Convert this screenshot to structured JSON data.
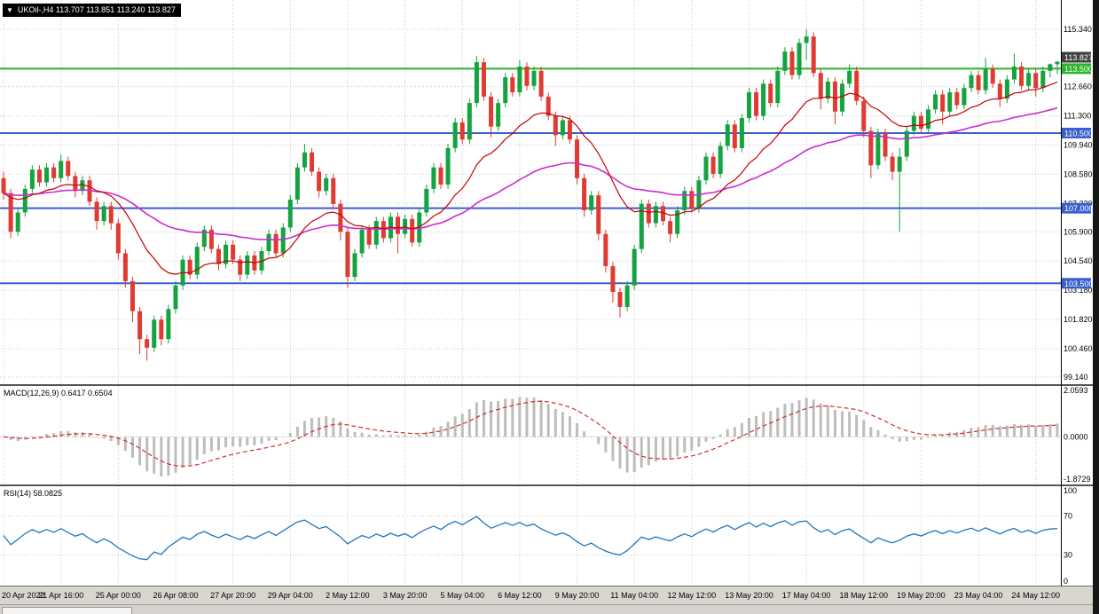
{
  "window": {
    "symbol_line": "UKOil-,H4 113.707 113.851 113.240 113.827"
  },
  "icons": {
    "collapse_arrow": "▼"
  },
  "colors": {
    "bull": "#13a33f",
    "bear": "#df3b32",
    "ma_fast": "#c40000",
    "ma_slow": "#cc2dcc",
    "grid": "#c9c9c9",
    "macd_hist": "#bdbdbd",
    "macd_signal": "#d03030",
    "rsi_line": "#2176bd",
    "separator": "#555555"
  },
  "chart_data": {
    "type": "candlestick",
    "symbol": "UKOil-",
    "timeframe": "H4",
    "ohlc_display": {
      "open": "113.707",
      "high": "113.851",
      "low": "113.240",
      "close": "113.827"
    },
    "main": {
      "price_min": 98.8,
      "price_max": 116.7,
      "ma_fast_period": 16,
      "ma_slow_period": 50,
      "axis_labels": [
        {
          "v": 115.34,
          "t": "115.340"
        },
        {
          "v": 112.66,
          "t": "112.660"
        },
        {
          "v": 111.3,
          "t": "111.300"
        },
        {
          "v": 109.94,
          "t": "109.940"
        },
        {
          "v": 108.58,
          "t": "108.580"
        },
        {
          "v": 107.22,
          "t": "107.220"
        },
        {
          "v": 105.9,
          "t": "105.900"
        },
        {
          "v": 104.54,
          "t": "104.540"
        },
        {
          "v": 103.18,
          "t": "103.180"
        },
        {
          "v": 101.82,
          "t": "101.820"
        },
        {
          "v": 100.46,
          "t": "100.460"
        },
        {
          "v": 99.14,
          "t": "99.140"
        }
      ],
      "hlines": [
        {
          "value": 113.5,
          "label": "113.500",
          "color": "#2cb52c"
        },
        {
          "value": 110.5,
          "label": "110.500",
          "color": "#3a5fcd"
        },
        {
          "value": 107.0,
          "label": "107.000",
          "color": "#3a5fcd"
        },
        {
          "value": 103.5,
          "label": "103.500",
          "color": "#3a5fcd"
        }
      ],
      "price_badge": {
        "value": 113.827,
        "label": "113.827",
        "bg": "#3f3f3f"
      },
      "candles": [
        [
          108.4,
          108.7,
          107.4,
          107.7
        ],
        [
          107.7,
          107.9,
          105.6,
          105.9
        ],
        [
          105.9,
          107.0,
          105.7,
          106.8
        ],
        [
          106.8,
          108.1,
          106.6,
          107.9
        ],
        [
          107.9,
          109.0,
          107.7,
          108.8
        ],
        [
          108.8,
          109.0,
          108.0,
          108.2
        ],
        [
          108.2,
          109.1,
          108.0,
          108.9
        ],
        [
          108.9,
          109.1,
          108.2,
          108.4
        ],
        [
          108.4,
          109.5,
          108.2,
          109.2
        ],
        [
          109.2,
          109.4,
          108.3,
          108.5
        ],
        [
          108.5,
          108.7,
          107.5,
          107.8
        ],
        [
          107.8,
          108.5,
          107.6,
          108.3
        ],
        [
          108.3,
          108.5,
          107.1,
          107.3
        ],
        [
          107.3,
          107.5,
          106.0,
          106.4
        ],
        [
          106.4,
          107.3,
          106.2,
          107.1
        ],
        [
          107.1,
          107.3,
          106.0,
          106.3
        ],
        [
          106.3,
          106.5,
          104.6,
          104.9
        ],
        [
          104.9,
          105.1,
          103.3,
          103.6
        ],
        [
          103.6,
          103.8,
          101.7,
          102.2
        ],
        [
          102.2,
          102.4,
          100.2,
          100.9
        ],
        [
          100.9,
          101.1,
          99.9,
          100.5
        ],
        [
          100.5,
          102.0,
          100.3,
          101.8
        ],
        [
          101.8,
          102.0,
          100.6,
          100.9
        ],
        [
          100.9,
          102.5,
          100.7,
          102.3
        ],
        [
          102.3,
          103.6,
          102.1,
          103.4
        ],
        [
          103.4,
          104.8,
          103.2,
          104.6
        ],
        [
          104.6,
          104.8,
          103.7,
          103.9
        ],
        [
          103.9,
          105.4,
          103.7,
          105.2
        ],
        [
          105.2,
          106.2,
          105.0,
          106.0
        ],
        [
          106.0,
          106.2,
          104.9,
          105.1
        ],
        [
          105.1,
          105.3,
          104.1,
          104.4
        ],
        [
          104.4,
          105.5,
          104.2,
          105.3
        ],
        [
          105.3,
          105.5,
          104.4,
          104.6
        ],
        [
          104.6,
          104.8,
          103.6,
          103.9
        ],
        [
          103.9,
          105.0,
          103.7,
          104.8
        ],
        [
          104.8,
          105.0,
          103.9,
          104.1
        ],
        [
          104.1,
          105.2,
          103.9,
          105.0
        ],
        [
          105.0,
          106.0,
          104.8,
          105.8
        ],
        [
          105.8,
          106.0,
          104.7,
          104.9
        ],
        [
          104.9,
          106.3,
          104.7,
          106.1
        ],
        [
          106.1,
          107.6,
          105.9,
          107.4
        ],
        [
          107.4,
          109.1,
          107.2,
          108.9
        ],
        [
          108.9,
          110.0,
          108.7,
          109.6
        ],
        [
          109.6,
          109.8,
          108.5,
          108.7
        ],
        [
          108.7,
          108.9,
          107.5,
          107.8
        ],
        [
          107.8,
          108.6,
          107.6,
          108.4
        ],
        [
          108.4,
          108.6,
          107.0,
          107.2
        ],
        [
          107.2,
          107.4,
          105.5,
          105.9
        ],
        [
          105.9,
          106.1,
          103.3,
          103.8
        ],
        [
          103.8,
          105.1,
          103.6,
          104.9
        ],
        [
          104.9,
          106.2,
          104.7,
          106.0
        ],
        [
          106.0,
          106.2,
          105.1,
          105.3
        ],
        [
          105.3,
          106.6,
          105.1,
          106.4
        ],
        [
          106.4,
          106.6,
          105.4,
          105.6
        ],
        [
          105.6,
          106.8,
          105.4,
          106.6
        ],
        [
          106.6,
          106.8,
          104.9,
          105.8
        ],
        [
          105.8,
          106.7,
          105.6,
          106.5
        ],
        [
          106.5,
          106.7,
          105.2,
          105.4
        ],
        [
          105.4,
          107.0,
          105.2,
          106.8
        ],
        [
          106.8,
          108.1,
          106.6,
          107.9
        ],
        [
          107.9,
          109.1,
          107.7,
          108.9
        ],
        [
          108.9,
          109.1,
          107.9,
          108.1
        ],
        [
          108.1,
          110.0,
          107.9,
          109.8
        ],
        [
          109.8,
          111.2,
          109.6,
          111.0
        ],
        [
          111.0,
          111.2,
          110.0,
          110.2
        ],
        [
          110.2,
          112.1,
          110.0,
          111.9
        ],
        [
          111.9,
          114.1,
          111.7,
          113.8
        ],
        [
          113.8,
          114.0,
          112.0,
          112.2
        ],
        [
          112.2,
          112.4,
          110.3,
          110.8
        ],
        [
          110.8,
          112.1,
          110.6,
          111.9
        ],
        [
          111.9,
          113.3,
          111.7,
          113.1
        ],
        [
          113.1,
          113.3,
          112.2,
          112.4
        ],
        [
          112.4,
          113.9,
          112.2,
          113.6
        ],
        [
          113.6,
          113.8,
          112.5,
          112.7
        ],
        [
          112.7,
          113.6,
          112.5,
          113.4
        ],
        [
          113.4,
          113.6,
          112.0,
          112.2
        ],
        [
          112.2,
          112.4,
          111.1,
          111.3
        ],
        [
          111.3,
          111.5,
          109.9,
          110.4
        ],
        [
          110.4,
          111.3,
          110.2,
          111.1
        ],
        [
          111.1,
          111.3,
          110.0,
          110.2
        ],
        [
          110.2,
          110.4,
          108.1,
          108.4
        ],
        [
          108.4,
          108.6,
          106.6,
          106.9
        ],
        [
          106.9,
          107.8,
          106.7,
          107.6
        ],
        [
          107.6,
          107.8,
          105.5,
          105.8
        ],
        [
          105.8,
          106.0,
          104.0,
          104.3
        ],
        [
          104.3,
          104.5,
          102.6,
          103.1
        ],
        [
          103.1,
          103.3,
          101.9,
          102.4
        ],
        [
          102.4,
          103.6,
          102.2,
          103.4
        ],
        [
          103.4,
          105.3,
          103.2,
          105.1
        ],
        [
          105.1,
          107.4,
          104.9,
          107.2
        ],
        [
          107.2,
          107.4,
          106.1,
          106.3
        ],
        [
          106.3,
          107.3,
          106.1,
          107.1
        ],
        [
          107.1,
          107.3,
          106.2,
          106.4
        ],
        [
          106.4,
          106.6,
          105.4,
          105.8
        ],
        [
          105.8,
          107.1,
          105.6,
          106.9
        ],
        [
          106.9,
          108.0,
          106.7,
          107.8
        ],
        [
          107.8,
          108.0,
          106.8,
          107.0
        ],
        [
          107.0,
          108.5,
          106.8,
          108.3
        ],
        [
          108.3,
          109.6,
          108.1,
          109.4
        ],
        [
          109.4,
          109.6,
          108.4,
          108.6
        ],
        [
          108.6,
          110.1,
          108.4,
          109.9
        ],
        [
          109.9,
          111.1,
          109.7,
          110.9
        ],
        [
          110.9,
          111.1,
          109.6,
          109.8
        ],
        [
          109.8,
          111.4,
          109.6,
          111.2
        ],
        [
          111.2,
          112.6,
          111.0,
          112.4
        ],
        [
          112.4,
          112.6,
          111.1,
          111.3
        ],
        [
          111.3,
          113.0,
          111.1,
          112.8
        ],
        [
          112.8,
          113.0,
          111.7,
          111.9
        ],
        [
          111.9,
          113.6,
          111.7,
          113.4
        ],
        [
          113.4,
          114.5,
          113.2,
          114.3
        ],
        [
          114.3,
          114.5,
          113.0,
          113.2
        ],
        [
          113.2,
          114.9,
          113.0,
          114.7
        ],
        [
          114.7,
          115.34,
          113.9,
          115.0
        ],
        [
          115.0,
          115.2,
          113.1,
          113.3
        ],
        [
          113.3,
          113.5,
          111.6,
          112.1
        ],
        [
          112.1,
          113.1,
          111.9,
          112.9
        ],
        [
          112.9,
          113.1,
          110.9,
          111.5
        ],
        [
          111.5,
          113.0,
          111.3,
          112.8
        ],
        [
          112.8,
          113.7,
          112.6,
          113.4
        ],
        [
          113.4,
          113.6,
          111.8,
          112.0
        ],
        [
          112.0,
          112.2,
          110.3,
          110.6
        ],
        [
          110.6,
          110.8,
          108.4,
          109.0
        ],
        [
          109.0,
          110.7,
          108.8,
          110.5
        ],
        [
          110.5,
          110.7,
          109.2,
          109.4
        ],
        [
          109.4,
          109.6,
          108.3,
          108.7
        ],
        [
          108.7,
          109.8,
          105.9,
          109.4
        ],
        [
          109.4,
          110.8,
          109.2,
          110.6
        ],
        [
          110.6,
          111.5,
          110.4,
          111.3
        ],
        [
          111.3,
          111.5,
          110.5,
          110.7
        ],
        [
          110.7,
          111.8,
          110.5,
          111.6
        ],
        [
          111.6,
          112.5,
          111.4,
          112.3
        ],
        [
          112.3,
          112.5,
          110.9,
          111.5
        ],
        [
          111.5,
          112.6,
          111.3,
          112.4
        ],
        [
          112.4,
          112.6,
          111.6,
          111.8
        ],
        [
          111.8,
          112.8,
          111.6,
          112.6
        ],
        [
          112.6,
          113.4,
          112.4,
          113.2
        ],
        [
          113.2,
          113.4,
          112.3,
          112.5
        ],
        [
          112.5,
          114.0,
          112.3,
          113.5
        ],
        [
          113.5,
          113.7,
          112.6,
          112.8
        ],
        [
          112.8,
          113.0,
          111.7,
          112.1
        ],
        [
          112.1,
          113.2,
          111.9,
          113.0
        ],
        [
          113.0,
          114.2,
          112.8,
          113.6
        ],
        [
          113.6,
          113.8,
          112.5,
          112.7
        ],
        [
          112.7,
          113.5,
          112.5,
          113.3
        ],
        [
          113.3,
          113.5,
          112.2,
          112.6
        ],
        [
          112.6,
          113.6,
          112.4,
          113.4
        ],
        [
          113.4,
          113.75,
          113.1,
          113.707
        ],
        [
          113.707,
          113.851,
          113.24,
          113.827
        ]
      ]
    },
    "macd": {
      "label": "MACD(12,26,9) 0.6417 0.6504",
      "fast": 12,
      "slow": 26,
      "signal": 9,
      "range": [
        -2.1,
        2.25
      ],
      "axis_labels": [
        {
          "v": 2.0593,
          "t": "2.0593"
        },
        {
          "v": 0,
          "t": "0.0000"
        },
        {
          "v": -1.8729,
          "t": "-1.8729"
        }
      ]
    },
    "rsi": {
      "label": "RSI(14) 58.0825",
      "period": 14,
      "levels": [
        70,
        30
      ],
      "axis_labels": [
        {
          "v": 100,
          "t": "100"
        },
        {
          "v": 70,
          "t": "70"
        },
        {
          "v": 30,
          "t": "30"
        },
        {
          "v": 0,
          "t": "0"
        }
      ]
    },
    "time_labels": [
      {
        "bar": 0,
        "t": "20 Apr 2022"
      },
      {
        "bar": 8,
        "t": "21 Apr 16:00"
      },
      {
        "bar": 16,
        "t": "25 Apr 00:00"
      },
      {
        "bar": 24,
        "t": "26 Apr 08:00"
      },
      {
        "bar": 32,
        "t": "27 Apr 20:00"
      },
      {
        "bar": 40,
        "t": "29 Apr 04:00"
      },
      {
        "bar": 48,
        "t": "2 May 12:00"
      },
      {
        "bar": 56,
        "t": "3 May 20:00"
      },
      {
        "bar": 64,
        "t": "5 May 04:00"
      },
      {
        "bar": 72,
        "t": "6 May 12:00"
      },
      {
        "bar": 80,
        "t": "9 May 20:00"
      },
      {
        "bar": 88,
        "t": "11 May 04:00"
      },
      {
        "bar": 96,
        "t": "12 May 12:00"
      },
      {
        "bar": 104,
        "t": "13 May 20:00"
      },
      {
        "bar": 112,
        "t": "17 May 04:00"
      },
      {
        "bar": 120,
        "t": "18 May 12:00"
      },
      {
        "bar": 128,
        "t": "19 May 20:00"
      },
      {
        "bar": 136,
        "t": "23 May 04:00"
      },
      {
        "bar": 144,
        "t": "24 May 12:00"
      }
    ]
  }
}
